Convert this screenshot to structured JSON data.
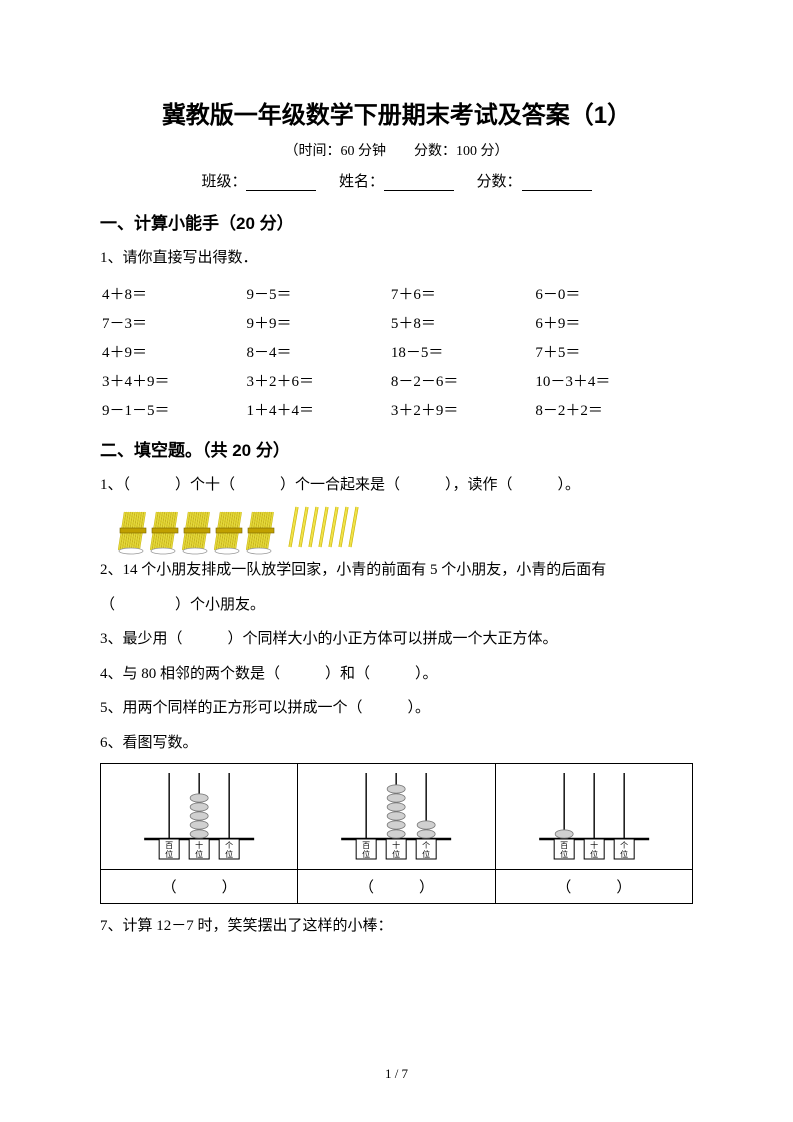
{
  "title": "冀教版一年级数学下册期末考试及答案（1）",
  "subtitle": "（时间：60 分钟　　分数：100 分）",
  "info": {
    "class_label": "班级：",
    "name_label": "姓名：",
    "score_label": "分数："
  },
  "s1": {
    "head": "一、计算小能手（20 分）",
    "q1_text": "1、请你直接写出得数．",
    "rows": [
      [
        "4＋8＝",
        "9－5＝",
        "7＋6＝",
        "6－0＝"
      ],
      [
        "7－3＝",
        "9＋9＝",
        "5＋8＝",
        "6＋9＝"
      ],
      [
        "4＋9＝",
        "8－4＝",
        "18－5＝",
        "7＋5＝"
      ],
      [
        "3＋4＋9＝",
        "3＋2＋6＝",
        "8－2－6＝",
        "10－3＋4＝"
      ],
      [
        "9－1－5＝",
        "1＋4＋4＝",
        "3＋2＋9＝",
        "8－2＋2＝"
      ]
    ]
  },
  "s2": {
    "head": "二、填空题。（共 20 分）",
    "q1": "1、（　　　）个十（　　　）个一合起来是（　　　），读作（　　　）。",
    "sticks": {
      "bundles": 5,
      "singles": 7,
      "bundle_color": "#e6da3a",
      "bundle_stroke": "#b8a200",
      "single_color": "#f0e24a",
      "single_stroke": "#c9b300"
    },
    "q2a": "2、14 个小朋友排成一队放学回家，小青的前面有 5 个小朋友，小青的后面有",
    "q2b": "（　　　　）个小朋友。",
    "q3": "3、最少用（　　　）个同样大小的小正方体可以拼成一个大正方体。",
    "q4": "4、与 80 相邻的两个数是（　　　）和（　　　）。",
    "q5": "5、用两个同样的正方形可以拼成一个（　　　）。",
    "q6": "6、看图写数。",
    "abacus": {
      "labels": {
        "h": "百",
        "t": "十",
        "o": "个",
        "w": "位"
      },
      "cols": [
        {
          "beads": [
            0,
            5,
            0
          ]
        },
        {
          "beads": [
            0,
            6,
            2
          ]
        },
        {
          "beads": [
            1,
            0,
            0
          ]
        }
      ],
      "answer_blank": "（　　　）"
    },
    "q7": "7、计算 12－7 时，笑笑摆出了这样的小棒："
  },
  "pagenum": "1 / 7",
  "colors": {
    "text": "#000000",
    "bg": "#ffffff",
    "bead": "#d0d0d0",
    "bead_stroke": "#777"
  }
}
